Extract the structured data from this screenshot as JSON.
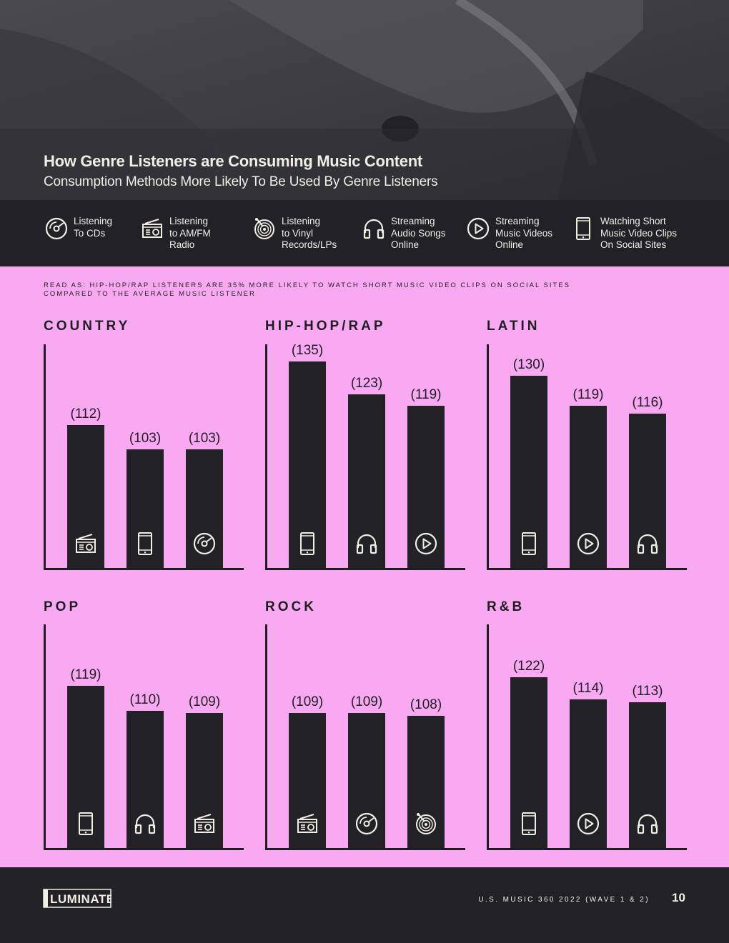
{
  "header": {
    "title": "How Genre Listeners are Consuming Music Content",
    "subtitle": "Consumption Methods More Likely To Be Used By Genre Listeners"
  },
  "legend": [
    {
      "icon": "cd-icon",
      "label": "Listening\nTo CDs"
    },
    {
      "icon": "radio-icon",
      "label": "Listening\nto AM/FM\nRadio"
    },
    {
      "icon": "vinyl-icon",
      "label": "Listening\nto Vinyl\nRecords/LPs"
    },
    {
      "icon": "headphones-icon",
      "label": "Streaming\nAudio Songs\nOnline"
    },
    {
      "icon": "play-icon",
      "label": "Streaming\nMusic Videos\nOnline"
    },
    {
      "icon": "phone-icon",
      "label": "Watching Short\nMusic Video Clips\nOn Social Sites"
    }
  ],
  "read_as": "READ AS: HIP-HOP/RAP LISTENERS ARE 35% MORE LIKELY TO WATCH SHORT MUSIC VIDEO CLIPS ON SOCIAL SITES COMPARED TO THE AVERAGE MUSIC LISTENER",
  "chart_data": [
    {
      "type": "bar",
      "title": "COUNTRY",
      "categories": [
        "Listening to AM/FM Radio",
        "Watching Short Music Video Clips On Social Sites",
        "Listening To CDs"
      ],
      "icons": [
        "radio-icon",
        "phone-icon",
        "cd-icon"
      ],
      "values": [
        112,
        103,
        103
      ],
      "labels": [
        "(112)",
        "(103)",
        "(103)"
      ]
    },
    {
      "type": "bar",
      "title": "HIP-HOP/RAP",
      "categories": [
        "Watching Short Music Video Clips On Social Sites",
        "Streaming Audio Songs Online",
        "Streaming Music Videos Online"
      ],
      "icons": [
        "phone-icon",
        "headphones-icon",
        "play-icon"
      ],
      "values": [
        135,
        123,
        119
      ],
      "labels": [
        "(135)",
        "(123)",
        "(119)"
      ]
    },
    {
      "type": "bar",
      "title": "LATIN",
      "categories": [
        "Watching Short Music Video Clips On Social Sites",
        "Streaming Music Videos Online",
        "Streaming Audio Songs Online"
      ],
      "icons": [
        "phone-icon",
        "play-icon",
        "headphones-icon"
      ],
      "values": [
        130,
        119,
        116
      ],
      "labels": [
        "(130)",
        "(119)",
        "(116)"
      ]
    },
    {
      "type": "bar",
      "title": "POP",
      "categories": [
        "Watching Short Music Video Clips On Social Sites",
        "Streaming Audio Songs Online",
        "Listening to AM/FM Radio"
      ],
      "icons": [
        "phone-icon",
        "headphones-icon",
        "radio-icon"
      ],
      "values": [
        119,
        110,
        109
      ],
      "labels": [
        "(119)",
        "(110)",
        "(109)"
      ]
    },
    {
      "type": "bar",
      "title": "ROCK",
      "categories": [
        "Listening to AM/FM Radio",
        "Listening To CDs",
        "Listening to Vinyl Records/LPs"
      ],
      "icons": [
        "radio-icon",
        "cd-icon",
        "vinyl-icon"
      ],
      "values": [
        109,
        109,
        108
      ],
      "labels": [
        "(109)",
        "(109)",
        "(108)"
      ]
    },
    {
      "type": "bar",
      "title": "R&B",
      "categories": [
        "Watching Short Music Video Clips On Social Sites",
        "Streaming Music Videos Online",
        "Streaming Audio Songs Online"
      ],
      "icons": [
        "phone-icon",
        "play-icon",
        "headphones-icon"
      ],
      "values": [
        122,
        114,
        113
      ],
      "labels": [
        "(122)",
        "(114)",
        "(113)"
      ]
    }
  ],
  "footer": {
    "logo": "LUMINATE",
    "source": "U.S. MUSIC 360 2022 (WAVE 1 & 2)",
    "page": "10"
  },
  "colors": {
    "background": "#f9a9f2",
    "dark": "#212126",
    "text_light": "#f1eee6"
  }
}
